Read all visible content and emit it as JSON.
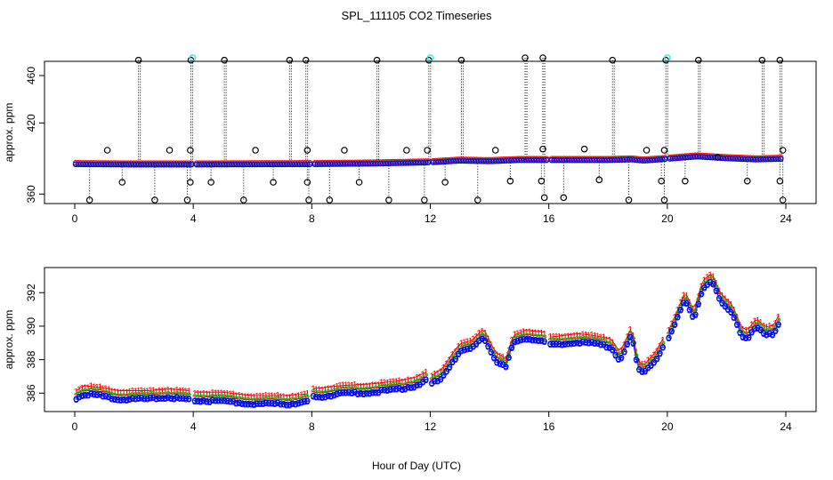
{
  "figure": {
    "title": "SPL_111105  CO2 Timeseries",
    "xlabel": "Hour of Day (UTC)"
  },
  "colors": {
    "raw": "#000000",
    "calibration": "#2ee6e6",
    "series1": "#ff0000",
    "series2": "#00c000",
    "series3": "#0000ff"
  },
  "chart_data": [
    {
      "type": "scatter",
      "panel": "top",
      "ylabel": "approx. ppm",
      "xlim": [
        0,
        24
      ],
      "ylim": [
        352,
        472
      ],
      "xticks": [
        0,
        4,
        8,
        12,
        16,
        20,
        24
      ],
      "yticks": [
        360,
        420,
        460
      ],
      "baseline": [
        [
          0,
          385.5
        ],
        [
          2,
          385.2
        ],
        [
          4,
          385.2
        ],
        [
          6,
          385.4
        ],
        [
          8,
          385.5
        ],
        [
          10,
          386.0
        ],
        [
          12,
          387.0
        ],
        [
          13,
          388.5
        ],
        [
          14,
          388.0
        ],
        [
          15,
          389.0
        ],
        [
          16,
          389.0
        ],
        [
          18,
          389.0
        ],
        [
          18.8,
          389.5
        ],
        [
          19.2,
          388.5
        ],
        [
          20,
          390.0
        ],
        [
          21,
          392.0
        ],
        [
          22,
          390.5
        ],
        [
          23,
          389.5
        ],
        [
          23.8,
          390.0
        ]
      ],
      "gaps": [
        [
          3.97,
          4.03
        ],
        [
          7.95,
          8.05
        ],
        [
          11.97,
          12.03
        ],
        [
          15.97,
          16.03
        ],
        [
          19.97,
          20.03
        ]
      ],
      "raw_spikes": [
        {
          "x": 2.15,
          "high": 473,
          "low": 385
        },
        {
          "x": 3.92,
          "high": 473,
          "low": 385
        },
        {
          "x": 5.05,
          "high": 473,
          "low": 385
        },
        {
          "x": 7.25,
          "high": 473,
          "low": 385
        },
        {
          "x": 7.8,
          "high": 473,
          "low": 385
        },
        {
          "x": 10.2,
          "high": 473,
          "low": 386
        },
        {
          "x": 11.95,
          "high": 473,
          "low": 387
        },
        {
          "x": 13.05,
          "high": 473,
          "low": 388
        },
        {
          "x": 15.2,
          "high": 475,
          "low": 389
        },
        {
          "x": 15.8,
          "high": 475,
          "low": 389
        },
        {
          "x": 18.15,
          "high": 473,
          "low": 389
        },
        {
          "x": 19.95,
          "high": 473,
          "low": 390
        },
        {
          "x": 21.05,
          "high": 473,
          "low": 391
        },
        {
          "x": 23.2,
          "high": 473,
          "low": 389
        },
        {
          "x": 23.8,
          "high": 473,
          "low": 390
        }
      ],
      "raw_dips": [
        {
          "x": 0.5,
          "low": 355
        },
        {
          "x": 1.6,
          "low": 370
        },
        {
          "x": 2.7,
          "low": 355
        },
        {
          "x": 3.8,
          "low": 355
        },
        {
          "x": 3.9,
          "low": 370
        },
        {
          "x": 4.6,
          "low": 370
        },
        {
          "x": 5.7,
          "low": 355
        },
        {
          "x": 6.7,
          "low": 370
        },
        {
          "x": 7.85,
          "low": 370
        },
        {
          "x": 7.9,
          "low": 355
        },
        {
          "x": 8.6,
          "low": 355
        },
        {
          "x": 9.6,
          "low": 370
        },
        {
          "x": 10.6,
          "low": 355
        },
        {
          "x": 11.8,
          "low": 355
        },
        {
          "x": 12.5,
          "low": 370
        },
        {
          "x": 13.6,
          "low": 355
        },
        {
          "x": 14.7,
          "low": 371
        },
        {
          "x": 15.75,
          "low": 371
        },
        {
          "x": 15.85,
          "low": 357
        },
        {
          "x": 16.5,
          "low": 357
        },
        {
          "x": 17.7,
          "low": 372
        },
        {
          "x": 18.7,
          "low": 355
        },
        {
          "x": 19.8,
          "low": 371
        },
        {
          "x": 19.9,
          "low": 355
        },
        {
          "x": 20.6,
          "low": 371
        },
        {
          "x": 21.7,
          "low": 391
        },
        {
          "x": 22.7,
          "low": 371
        },
        {
          "x": 23.8,
          "low": 371
        },
        {
          "x": 23.9,
          "low": 355
        }
      ],
      "raw_high_points": [
        {
          "x": 1.1,
          "y": 397
        },
        {
          "x": 3.2,
          "y": 397
        },
        {
          "x": 3.9,
          "y": 397
        },
        {
          "x": 6.1,
          "y": 397
        },
        {
          "x": 7.85,
          "y": 397
        },
        {
          "x": 9.1,
          "y": 397
        },
        {
          "x": 11.2,
          "y": 397
        },
        {
          "x": 11.9,
          "y": 397
        },
        {
          "x": 14.2,
          "y": 397
        },
        {
          "x": 15.8,
          "y": 398
        },
        {
          "x": 17.2,
          "y": 398
        },
        {
          "x": 19.3,
          "y": 397
        },
        {
          "x": 19.9,
          "y": 397
        },
        {
          "x": 23.9,
          "y": 397
        }
      ],
      "calibration_points": [
        {
          "x": 3.98,
          "y": 475
        },
        {
          "x": 12.0,
          "y": 475
        },
        {
          "x": 20.0,
          "y": 475
        }
      ]
    },
    {
      "type": "scatter",
      "panel": "bottom",
      "ylabel": "approx. ppm",
      "xlabel": "Hour of Day (UTC)",
      "xlim": [
        0,
        24
      ],
      "ylim": [
        384.9,
        393.5
      ],
      "xticks": [
        0,
        4,
        8,
        12,
        16,
        20,
        24
      ],
      "yticks": [
        386,
        388,
        390,
        392
      ],
      "series": [
        {
          "name": "1",
          "marker": "1",
          "offset": 0.45
        },
        {
          "name": "2",
          "marker": "2",
          "offset": 0.2
        },
        {
          "name": "3",
          "marker": "3",
          "offset": 0
        },
        {
          "name": "o",
          "marker": "o",
          "offset": 0
        }
      ],
      "segments": [
        {
          "x0": 0.05,
          "x1": 3.85,
          "points": [
            [
              0.05,
              385.7
            ],
            [
              0.3,
              386.0
            ],
            [
              0.8,
              385.9
            ],
            [
              1.5,
              385.7
            ],
            [
              2.5,
              385.7
            ],
            [
              3.2,
              385.8
            ],
            [
              3.85,
              385.7
            ]
          ]
        },
        {
          "x0": 4.05,
          "x1": 7.85,
          "points": [
            [
              4.05,
              385.6
            ],
            [
              5,
              385.6
            ],
            [
              6,
              385.4
            ],
            [
              7,
              385.4
            ],
            [
              7.85,
              385.5
            ]
          ]
        },
        {
          "x0": 8.05,
          "x1": 11.85,
          "points": [
            [
              8.05,
              385.8
            ],
            [
              9,
              386.0
            ],
            [
              10,
              386.1
            ],
            [
              11,
              386.3
            ],
            [
              11.5,
              386.5
            ],
            [
              11.85,
              386.8
            ]
          ]
        },
        {
          "x0": 12.05,
          "x1": 15.85,
          "points": [
            [
              12.05,
              386.6
            ],
            [
              12.4,
              387.0
            ],
            [
              12.7,
              387.8
            ],
            [
              13.0,
              388.5
            ],
            [
              13.4,
              388.7
            ],
            [
              13.8,
              389.4
            ],
            [
              14.0,
              388.7
            ],
            [
              14.2,
              388.0
            ],
            [
              14.55,
              387.6
            ],
            [
              14.8,
              389.0
            ],
            [
              15.2,
              389.3
            ],
            [
              15.85,
              389.2
            ]
          ]
        },
        {
          "x0": 16.05,
          "x1": 19.85,
          "points": [
            [
              16.05,
              388.9
            ],
            [
              17.0,
              389.1
            ],
            [
              17.5,
              389.0
            ],
            [
              18.1,
              388.8
            ],
            [
              18.4,
              388.0
            ],
            [
              18.8,
              389.5
            ],
            [
              19.0,
              387.5
            ],
            [
              19.2,
              387.2
            ],
            [
              19.6,
              388.0
            ],
            [
              19.85,
              388.8
            ]
          ]
        },
        {
          "x0": 20.05,
          "x1": 23.8,
          "points": [
            [
              20.05,
              389.3
            ],
            [
              20.3,
              390.3
            ],
            [
              20.6,
              391.6
            ],
            [
              20.9,
              390.5
            ],
            [
              21.2,
              392.3
            ],
            [
              21.5,
              392.7
            ],
            [
              21.8,
              391.5
            ],
            [
              22.2,
              390.8
            ],
            [
              22.5,
              389.5
            ],
            [
              22.7,
              389.3
            ],
            [
              23.0,
              390.0
            ],
            [
              23.3,
              389.5
            ],
            [
              23.6,
              389.6
            ],
            [
              23.8,
              390.4
            ]
          ]
        }
      ]
    }
  ]
}
